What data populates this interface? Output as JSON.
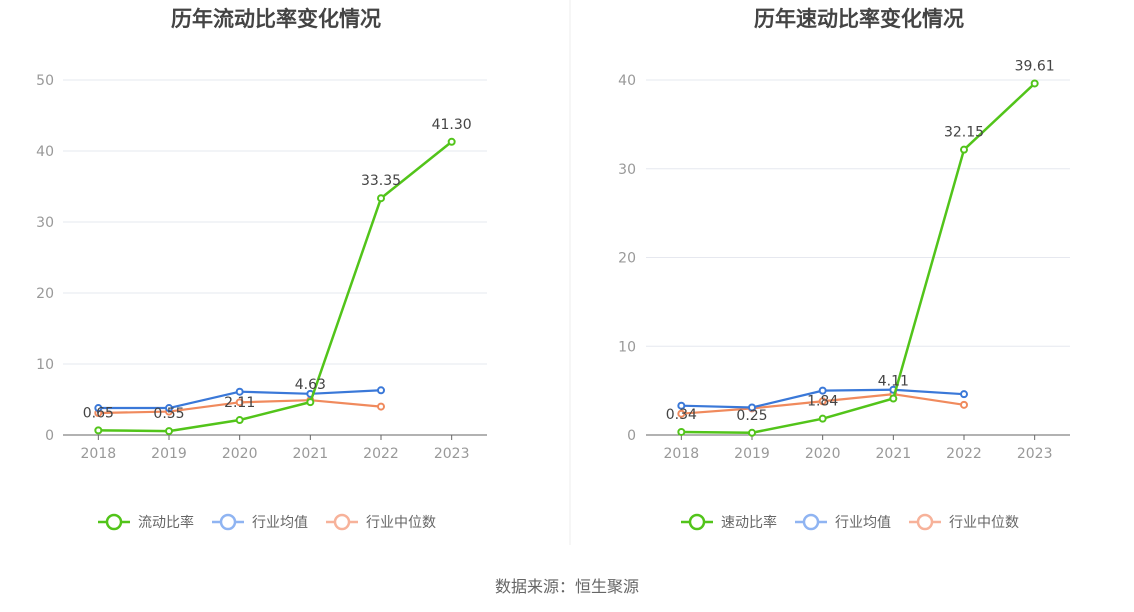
{
  "source": "数据来源：恒生聚源",
  "colors": {
    "primary": "#52c41a",
    "average": "#3a78d8",
    "median": "#f08a5d",
    "average_legend": "#8fb4f2",
    "median_legend": "#f7b29a",
    "grid": "#e6e8ef",
    "axis": "#999999"
  },
  "chart_data": [
    {
      "type": "line",
      "title": "历年流动比率变化情况",
      "categories": [
        "2018",
        "2019",
        "2020",
        "2021",
        "2022",
        "2023"
      ],
      "ylim": [
        0,
        50
      ],
      "yticks": [
        "0",
        "10",
        "20",
        "30",
        "40",
        "50"
      ],
      "grid": true,
      "legend_position": "bottom",
      "series": [
        {
          "name": "流动比率",
          "values": [
            0.65,
            0.55,
            2.11,
            4.63,
            33.35,
            41.3
          ],
          "labels": [
            "0.65",
            "0.55",
            "2.11",
            "4.63",
            "33.35",
            "41.30"
          ]
        },
        {
          "name": "行业均值",
          "values": [
            3.8,
            3.8,
            6.1,
            5.8,
            6.3,
            null
          ]
        },
        {
          "name": "行业中位数",
          "values": [
            3.1,
            3.3,
            4.6,
            4.9,
            4.0,
            null
          ]
        }
      ]
    },
    {
      "type": "line",
      "title": "历年速动比率变化情况",
      "categories": [
        "2018",
        "2019",
        "2020",
        "2021",
        "2022",
        "2023"
      ],
      "ylim": [
        0,
        40
      ],
      "yticks": [
        "0",
        "10",
        "20",
        "30",
        "40"
      ],
      "grid": true,
      "legend_position": "bottom",
      "series": [
        {
          "name": "速动比率",
          "values": [
            0.34,
            0.25,
            1.84,
            4.11,
            32.15,
            39.61
          ],
          "labels": [
            "0.34",
            "0.25",
            "1.84",
            "4.11",
            "32.15",
            "39.61"
          ]
        },
        {
          "name": "行业均值",
          "values": [
            3.3,
            3.1,
            5.0,
            5.1,
            4.6,
            null
          ]
        },
        {
          "name": "行业中位数",
          "values": [
            2.4,
            3.0,
            3.8,
            4.6,
            3.4,
            null
          ]
        }
      ]
    }
  ]
}
